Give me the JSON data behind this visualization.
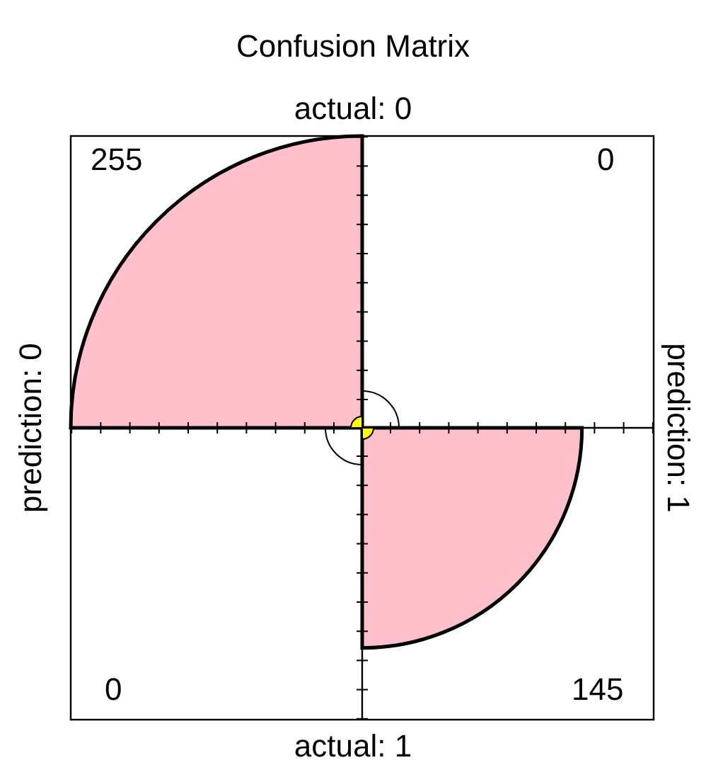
{
  "chart_data": {
    "type": "other",
    "title": "Confusion Matrix",
    "categories": [
      "prediction: 0",
      "prediction: 1"
    ],
    "annotations": [
      "actual: 0",
      "actual: 1"
    ],
    "series": [
      {
        "color": "#ffc0cb",
        "values": [
          255,
          0
        ]
      },
      {
        "color": "#ffc0cb",
        "values": [
          0,
          145
        ]
      }
    ],
    "data_labels": true
  }
}
